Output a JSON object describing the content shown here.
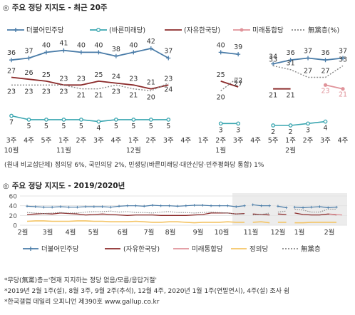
{
  "title1": "주요 정당 지지도 - 최근 20주",
  "title2": "주요 정당 지지도 - 2019/2020년",
  "note1": "(원내 비교섭단체) 정의당 6%, 국민의당 2%, 민생당(바른미래당·대안신당·민주평화당 통합) 1%",
  "footnotes": [
    "*무당(無黨)층='현재 지지하는 정당 없음/모름/응답거절'",
    "*2019년 2월 1주(설), 8월 3주, 9월 2주(추석), 12월 4주, 2020년 1월 1주(연말연시), 4주(설) 조사 쉼",
    "*한국갤럽 데일리 오피니언 제390호 www.gallup.co.kr"
  ],
  "colors": {
    "minju": "#4a7ca8",
    "bareun": "#3aa6b0",
    "jayu": "#8b2a2a",
    "mirae": "#e0939a",
    "muhdang": "#888888",
    "jeongui": "#f4c464",
    "grid": "#e3e3e3",
    "shade": "#ececec"
  },
  "chart_data": [
    {
      "type": "line",
      "title": "주요 정당 지지도 - 최근 20주",
      "x_labels": [
        "3주",
        "4주",
        "5주",
        "1주",
        "2주",
        "3주",
        "4주",
        "1주",
        "2주",
        "3주",
        "4주",
        "1주",
        "2주",
        "3주",
        "4주",
        "5주",
        "1주",
        "2주",
        "3주",
        "4주"
      ],
      "x_label_groups": [
        {
          "label": "10월",
          "index": 0
        },
        {
          "label": "11월",
          "index": 3
        },
        {
          "label": "12월",
          "index": 7
        },
        {
          "label": "1월",
          "index": 12
        },
        {
          "label": "2월",
          "index": 16
        }
      ],
      "legend": [
        "더불어민주당",
        "(바른미래당)",
        "(자유한국당)",
        "미래통합당",
        "無黨층(%)"
      ],
      "legend_placement": "top",
      "series": [
        {
          "name": "더불어민주당",
          "key": "minju",
          "values": [
            36,
            37,
            40,
            41,
            40,
            40,
            38,
            40,
            42,
            37,
            null,
            null,
            40,
            39,
            null,
            34,
            36,
            37,
            36,
            37
          ]
        },
        {
          "name": "(바른미래당)",
          "key": "bareun",
          "values": [
            7,
            5,
            5,
            5,
            5,
            4,
            5,
            5,
            5,
            5,
            null,
            null,
            3,
            3,
            null,
            2,
            2,
            3,
            4,
            null
          ]
        },
        {
          "name": "(자유한국당)",
          "key": "jayu",
          "values": [
            27,
            26,
            25,
            23,
            23,
            25,
            24,
            23,
            21,
            23,
            null,
            null,
            25,
            22,
            null,
            21,
            21,
            null,
            null,
            null
          ]
        },
        {
          "name": "미래통합당",
          "key": "mirae",
          "values": [
            null,
            null,
            null,
            null,
            null,
            null,
            null,
            null,
            null,
            null,
            null,
            null,
            null,
            null,
            null,
            null,
            null,
            null,
            23,
            21
          ]
        },
        {
          "name": "無黨층(%)",
          "key": "muhdang",
          "values": [
            23,
            23,
            23,
            23,
            21,
            21,
            23,
            21,
            20,
            24,
            null,
            null,
            20,
            27,
            null,
            33,
            31,
            27,
            27,
            33
          ]
        }
      ]
    },
    {
      "type": "line",
      "title": "주요 정당 지지도 - 2019/2020년",
      "ylim": [
        0,
        60
      ],
      "y_ticks": [
        0,
        20,
        40,
        60
      ],
      "x_labels": [
        "2월",
        "3월",
        "4월",
        "5월",
        "6월",
        "7월",
        "8월",
        "9월",
        "10월",
        "11월",
        "12월",
        "1월",
        "2월"
      ],
      "legend": [
        "더불어민주당",
        "(자유한국당)",
        "미래통합당",
        "정의당",
        "無黨층"
      ],
      "legend_placement": "bottom",
      "series": [
        {
          "name": "더불어민주당",
          "key": "minju",
          "values": [
            39,
            38,
            37,
            37,
            38,
            37,
            37,
            38,
            38,
            38,
            37,
            39,
            40,
            40,
            39,
            41,
            40,
            40,
            39,
            40,
            41,
            41,
            40,
            40,
            40,
            38,
            40,
            42,
            40,
            40,
            39,
            36,
            37,
            36,
            37,
            38,
            36,
            37
          ]
        },
        {
          "name": "(자유한국당)",
          "key": "jayu",
          "values": [
            22,
            23,
            24,
            23,
            25,
            24,
            23,
            21,
            22,
            23,
            22,
            21,
            20,
            21,
            21,
            21,
            20,
            20,
            20,
            20,
            21,
            22,
            25,
            25,
            25,
            23,
            24,
            23,
            22,
            21,
            23,
            22,
            25,
            22,
            21,
            21,
            23,
            21
          ]
        },
        {
          "name": "미래통합당",
          "key": "mirae",
          "values": [
            23,
            21
          ]
        },
        {
          "name": "정의당",
          "key": "jeongui",
          "values": [
            8,
            9,
            9,
            8,
            8,
            8,
            9,
            9,
            8,
            8,
            7,
            7,
            7,
            8,
            7,
            6,
            6,
            7,
            7,
            6,
            5,
            6,
            6,
            6,
            7,
            6,
            6,
            6,
            7,
            5,
            6,
            6,
            5,
            5,
            6,
            6,
            6,
            6
          ]
        },
        {
          "name": "無黨층",
          "key": "muhdang",
          "values": [
            26,
            25,
            24,
            25,
            26,
            25,
            25,
            27,
            28,
            28,
            29,
            27,
            28,
            26,
            26,
            25,
            27,
            28,
            26,
            26,
            25,
            26,
            27,
            26,
            25,
            23,
            23,
            21,
            22,
            25,
            27,
            29,
            33,
            31,
            27,
            27,
            33,
            33
          ]
        }
      ]
    }
  ]
}
